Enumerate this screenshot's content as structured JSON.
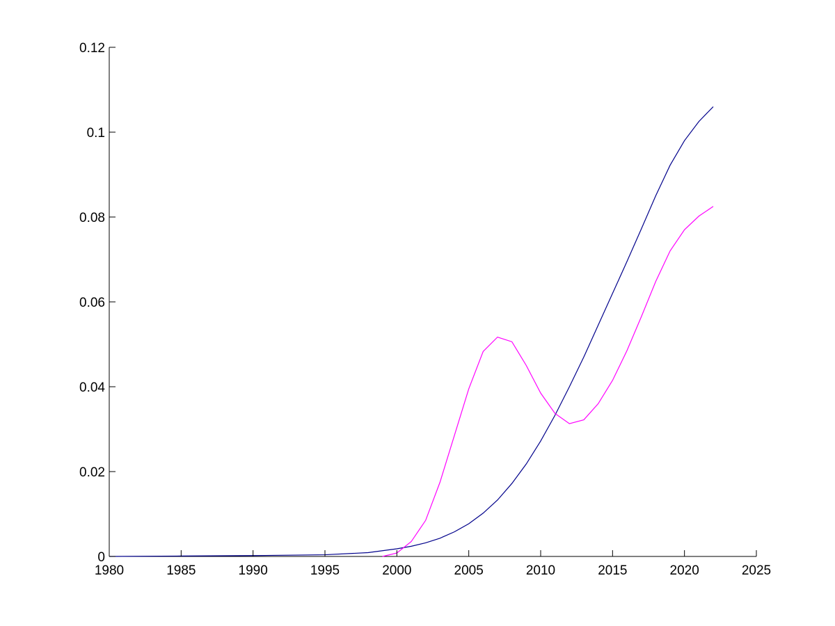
{
  "chart_data": {
    "type": "line",
    "title": "",
    "xlabel": "",
    "ylabel": "",
    "xlim": [
      1980,
      2025
    ],
    "ylim": [
      0,
      0.12
    ],
    "grid": false,
    "x_ticks": [
      "1980",
      "1985",
      "1990",
      "1995",
      "2000",
      "2005",
      "2010",
      "2015",
      "2020",
      "2025"
    ],
    "y_ticks": [
      "0",
      "0.02",
      "0.04",
      "0.06",
      "0.08",
      "0.1",
      "0.12"
    ],
    "series": [
      {
        "color": "#00008b",
        "points": [
          [
            1980,
            0.0
          ],
          [
            1985,
            0.0001
          ],
          [
            1990,
            0.0002
          ],
          [
            1995,
            0.0004
          ],
          [
            1998,
            0.0009
          ],
          [
            2000,
            0.0018
          ],
          [
            2001,
            0.0024
          ],
          [
            2002,
            0.0032
          ],
          [
            2003,
            0.0043
          ],
          [
            2004,
            0.0058
          ],
          [
            2005,
            0.0077
          ],
          [
            2006,
            0.0102
          ],
          [
            2007,
            0.0133
          ],
          [
            2008,
            0.0172
          ],
          [
            2009,
            0.0218
          ],
          [
            2010,
            0.0272
          ],
          [
            2011,
            0.0333
          ],
          [
            2012,
            0.04
          ],
          [
            2013,
            0.047
          ],
          [
            2014,
            0.0545
          ],
          [
            2015,
            0.062
          ],
          [
            2016,
            0.0695
          ],
          [
            2017,
            0.0772
          ],
          [
            2018,
            0.085
          ],
          [
            2019,
            0.0922
          ],
          [
            2020,
            0.098
          ],
          [
            2021,
            0.1025
          ],
          [
            2022,
            0.106
          ]
        ]
      },
      {
        "color": "#ff00ff",
        "points": [
          [
            1999,
            0.0
          ],
          [
            2000,
            0.0008
          ],
          [
            2001,
            0.0035
          ],
          [
            2002,
            0.0085
          ],
          [
            2003,
            0.0175
          ],
          [
            2004,
            0.0285
          ],
          [
            2005,
            0.0395
          ],
          [
            2006,
            0.0483
          ],
          [
            2007,
            0.0517
          ],
          [
            2008,
            0.0506
          ],
          [
            2009,
            0.045
          ],
          [
            2010,
            0.0385
          ],
          [
            2011,
            0.0337
          ],
          [
            2012,
            0.0313
          ],
          [
            2013,
            0.0322
          ],
          [
            2014,
            0.036
          ],
          [
            2015,
            0.0415
          ],
          [
            2016,
            0.0485
          ],
          [
            2017,
            0.0565
          ],
          [
            2018,
            0.0648
          ],
          [
            2019,
            0.072
          ],
          [
            2020,
            0.077
          ],
          [
            2021,
            0.0802
          ],
          [
            2022,
            0.0825
          ]
        ]
      }
    ]
  }
}
